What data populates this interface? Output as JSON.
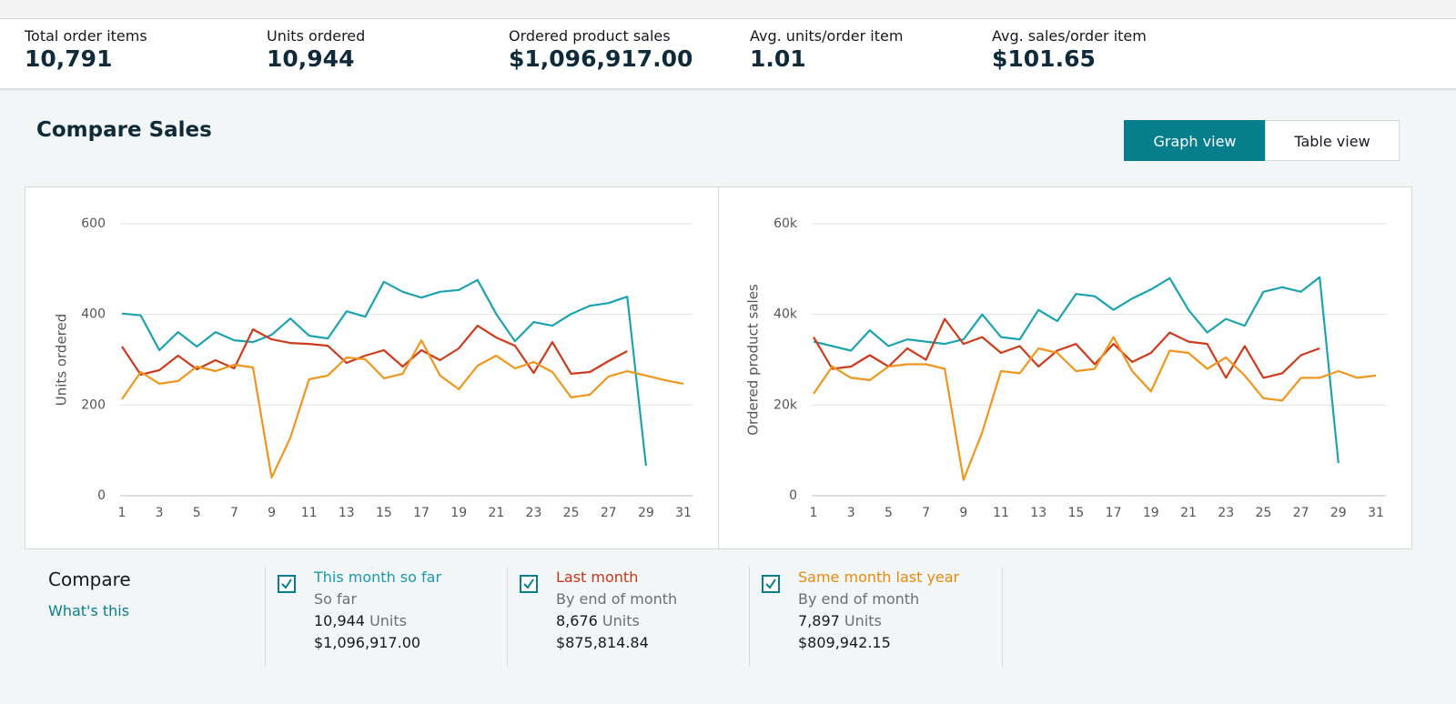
{
  "metrics": [
    {
      "label": "Total order items",
      "value": "10,791"
    },
    {
      "label": "Units ordered",
      "value": "10,944"
    },
    {
      "label": "Ordered product sales",
      "value": "$1,096,917.00"
    },
    {
      "label": "Avg. units/order item",
      "value": "1.01"
    },
    {
      "label": "Avg. sales/order item",
      "value": "$101.65"
    }
  ],
  "compare_sales": {
    "title": "Compare Sales",
    "buttons": [
      "Graph view",
      "Table view"
    ]
  },
  "chart_data": [
    {
      "type": "line",
      "y_label": "Units ordered",
      "x": [
        1,
        2,
        3,
        4,
        5,
        6,
        7,
        8,
        9,
        10,
        11,
        12,
        13,
        14,
        15,
        16,
        17,
        18,
        19,
        20,
        21,
        22,
        23,
        24,
        25,
        26,
        27,
        28,
        29,
        30,
        31
      ],
      "xlim": [
        1,
        31
      ],
      "xticks": [
        1,
        3,
        5,
        7,
        9,
        11,
        13,
        15,
        17,
        19,
        21,
        23,
        25,
        27,
        29,
        31
      ],
      "ylim": [
        0,
        600
      ],
      "yticks": [
        0,
        200,
        400,
        600
      ],
      "grid": true,
      "series": [
        {
          "color": "#1ca3b0",
          "values": [
            402,
            398,
            321,
            361,
            329,
            361,
            343,
            339,
            355,
            391,
            353,
            347,
            407,
            395,
            472,
            450,
            437,
            450,
            454,
            476,
            401,
            341,
            383,
            375,
            401,
            419,
            425,
            439,
            66,
            null,
            null
          ]
        },
        {
          "color": "#cc3b1b",
          "values": [
            329,
            267,
            277,
            309,
            279,
            299,
            281,
            367,
            345,
            337,
            335,
            331,
            293,
            309,
            321,
            285,
            321,
            299,
            325,
            375,
            349,
            331,
            271,
            339,
            269,
            273,
            297,
            319,
            null,
            null,
            null
          ]
        },
        {
          "color": "#f0961d",
          "values": [
            213,
            273,
            247,
            253,
            285,
            275,
            289,
            283,
            40,
            128,
            257,
            265,
            305,
            301,
            259,
            269,
            343,
            265,
            235,
            287,
            309,
            281,
            295,
            273,
            217,
            223,
            263,
            275,
            265,
            255,
            247
          ]
        }
      ]
    },
    {
      "type": "line",
      "y_label": "Ordered product sales",
      "x": [
        1,
        2,
        3,
        4,
        5,
        6,
        7,
        8,
        9,
        10,
        11,
        12,
        13,
        14,
        15,
        16,
        17,
        18,
        19,
        20,
        21,
        22,
        23,
        24,
        25,
        26,
        27,
        28,
        29,
        30,
        31
      ],
      "xlim": [
        1,
        31
      ],
      "xticks": [
        1,
        3,
        5,
        7,
        9,
        11,
        13,
        15,
        17,
        19,
        21,
        23,
        25,
        27,
        29,
        31
      ],
      "ylim": [
        0,
        60000
      ],
      "yticks": [
        0,
        {
          "value": 20000,
          "label": "20k"
        },
        {
          "value": 40000,
          "label": "40k"
        },
        {
          "value": 60000,
          "label": "60k"
        }
      ],
      "grid": true,
      "series": [
        {
          "color": "#1ca3b0",
          "values": [
            34000,
            33000,
            32000,
            36500,
            33000,
            34500,
            34000,
            33500,
            34500,
            40000,
            35000,
            34500,
            41000,
            38500,
            44500,
            44000,
            41000,
            43500,
            45500,
            48000,
            41000,
            36000,
            39000,
            37500,
            45000,
            46000,
            45000,
            48200,
            7200,
            null,
            null
          ]
        },
        {
          "color": "#cc3b1b",
          "values": [
            35000,
            28000,
            28500,
            31000,
            28500,
            32500,
            30000,
            39000,
            33500,
            35000,
            31500,
            33000,
            28500,
            32000,
            33500,
            29000,
            33500,
            29500,
            31500,
            36000,
            34000,
            33500,
            26000,
            33000,
            26000,
            27000,
            31000,
            32500,
            null,
            null,
            null
          ]
        },
        {
          "color": "#f0961d",
          "values": [
            22500,
            28500,
            26000,
            25500,
            28500,
            29000,
            29000,
            28000,
            3500,
            14000,
            27500,
            27000,
            32500,
            31500,
            27500,
            28000,
            35000,
            27500,
            23000,
            32000,
            31500,
            28000,
            30500,
            26500,
            21500,
            21000,
            26000,
            26000,
            27500,
            26000,
            26500
          ]
        }
      ]
    }
  ],
  "compare": {
    "title": "Compare",
    "link": "What's this",
    "items": [
      {
        "name": "This month so far",
        "color": "#1a9aa8",
        "basis": "So far",
        "units": "10,944",
        "units_label": "Units",
        "sales": "$1,096,917.00"
      },
      {
        "name": "Last month",
        "color": "#c7361a",
        "basis": "By end of month",
        "units": "8,676",
        "units_label": "Units",
        "sales": "$875,814.84"
      },
      {
        "name": "Same month last year",
        "color": "#e8890c",
        "basis": "By end of month",
        "units": "7,897",
        "units_label": "Units",
        "sales": "$809,942.15"
      }
    ]
  }
}
